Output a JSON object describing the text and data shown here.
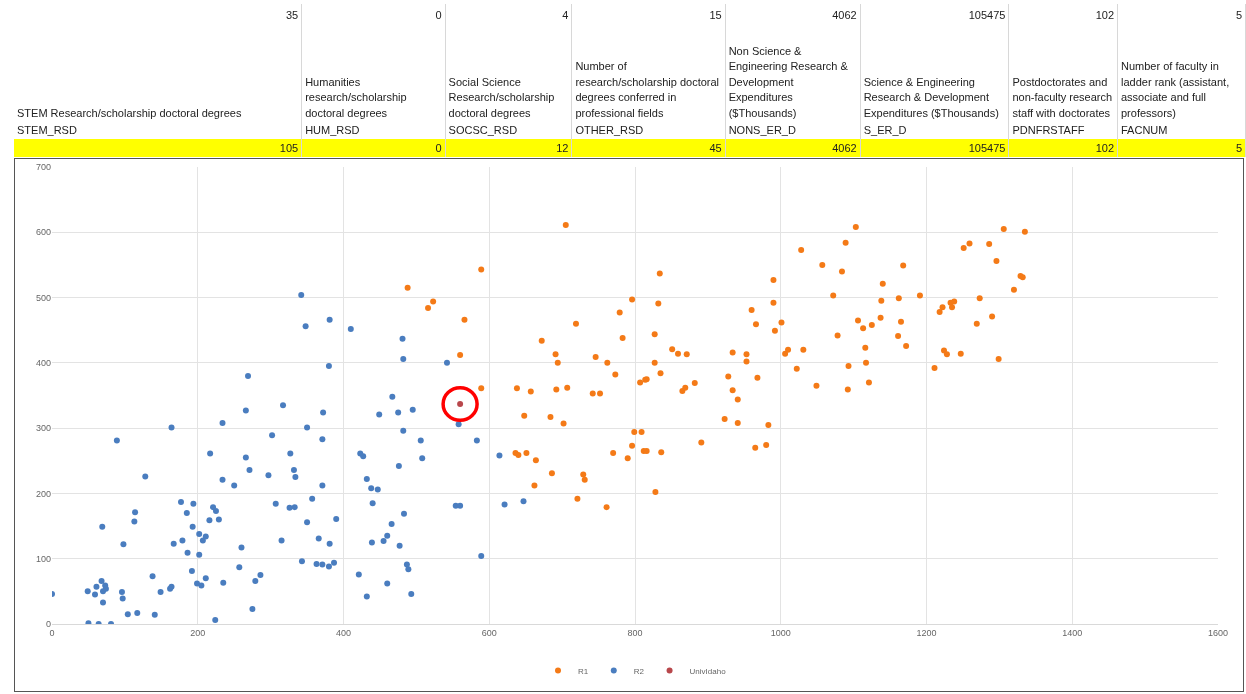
{
  "chart_data": {
    "type": "scatter",
    "annotations": [
      "35",
      "0",
      "4",
      "15",
      "4062",
      "105475",
      "102",
      "5",
      "STEM Research/scholarship doctoral degrees",
      "Humanities research/scholarship doctoral degrees",
      "Social Science Research/scholarship doctoral degrees",
      "Number of research/scholarship doctoral degrees conferred in professional fields",
      "Non Science & Engineering Research & Development Expenditures ($Thousands)",
      "Science & Engineering Research & Development Expenditures ($Thousands)",
      "Postdoctorates and non-faculty research staff with doctorates",
      "Number of faculty in ladder rank (assistant, associate and full professors)",
      "STEM_RSD",
      "HUM_RSD",
      "SOCSC_RSD",
      "OTHER_RSD",
      "NONS_ER_D",
      "S_ER_D",
      "PDNFRSTAFF",
      "FACNUM",
      "105",
      "0",
      "12",
      "45",
      "4062",
      "105475",
      "102",
      "5"
    ],
    "series": [
      {
        "name": "R1",
        "color": "#f47a17",
        "x": [
          488,
          516,
          523,
          566,
          560,
          589,
          589,
          705,
          834,
          796,
          832,
          779,
          719,
          672,
          783,
          827,
          691,
          694,
          746,
          762,
          773,
          827,
          835,
          851,
          859,
          871,
          807,
          814,
          816,
          638,
          657,
          692,
          707,
          742,
          752,
          865,
          869,
          882,
          648,
          684,
          702,
          799,
          809,
          796,
          812,
          816,
          836,
          770,
          790,
          636,
          640,
          651,
          664,
          686,
          729,
          731,
          662,
          721,
          761,
          828,
          891,
          934,
          953,
          953,
          928,
          934,
          941,
          968,
          923,
          941,
          983,
          965,
          980,
          990,
          990,
          960,
          966,
          1001,
          992,
          1006,
          1010,
          1022,
          1031,
          1049,
          1028,
          1057,
          1084,
          1072,
          1078,
          1089,
          1093,
          1092,
          1103,
          1168,
          1140,
          1138,
          1162,
          1191,
          1106,
          1113,
          1125,
          1137,
          1165,
          1161,
          1172,
          1116,
          1117,
          1121,
          1218,
          1222,
          1233,
          1238,
          1235,
          1273,
          1269,
          1290,
          1224,
          1228,
          1247,
          1211,
          1299,
          1251,
          1259,
          1286,
          1296,
          1306,
          1335,
          1320,
          1329,
          1332
        ],
        "values": [
          515,
          484,
          494,
          466,
          412,
          361,
          543,
          611,
          537,
          497,
          491,
          477,
          460,
          434,
          438,
          444,
          413,
          400,
          409,
          400,
          382,
          400,
          384,
          421,
          414,
          413,
          370,
          374,
          375,
          361,
          356,
          359,
          362,
          353,
          353,
          357,
          362,
          369,
          319,
          317,
          307,
          294,
          294,
          273,
          265,
          265,
          263,
          262,
          254,
          262,
          259,
          262,
          251,
          231,
          229,
          221,
          212,
          192,
          179,
          202,
          278,
          416,
          413,
          402,
          379,
          358,
          344,
          377,
          314,
          308,
          305,
          270,
          274,
          527,
          492,
          481,
          459,
          462,
          449,
          414,
          420,
          391,
          420,
          365,
          573,
          550,
          540,
          503,
          442,
          584,
          395,
          359,
          608,
          549,
          521,
          495,
          499,
          503,
          465,
          453,
          458,
          469,
          463,
          441,
          426,
          423,
          400,
          370,
          478,
          485,
          492,
          494,
          485,
          499,
          460,
          471,
          419,
          413,
          414,
          392,
          406,
          576,
          583,
          582,
          556,
          605,
          601,
          512,
          533,
          531
        ]
      },
      {
        "name": "R2",
        "color": "#4a7dbf",
        "x": [
          342,
          348,
          381,
          380,
          269,
          89,
          164,
          234,
          266,
          317,
          350,
          372,
          371,
          302,
          217,
          266,
          327,
          271,
          332,
          334,
          297,
          234,
          250,
          128,
          371,
          357,
          177,
          194,
          185,
          114,
          113,
          69,
          193,
          221,
          225,
          216,
          229,
          307,
          326,
          333,
          350,
          390,
          202,
          207,
          211,
          98,
          167,
          179,
          186,
          202,
          260,
          315,
          366,
          381,
          343,
          363,
          371,
          380,
          387,
          257,
          192,
          138,
          211,
          286,
          279,
          199,
          205,
          235,
          68,
          61,
          73,
          74,
          49,
          59,
          70,
          96,
          97,
          149,
          162,
          164,
          0,
          70,
          104,
          117,
          141,
          275,
          224,
          50,
          64,
          81,
          410,
          481,
          482,
          542,
          467,
          449,
          475,
          495,
          482,
          506,
          583,
          508,
          423,
          427,
          476,
          614,
          558,
          432,
          438,
          447,
          440,
          554,
          560,
          621,
          647,
          483,
          466,
          460,
          455,
          439,
          477,
          589,
          487,
          489,
          421,
          460,
          432,
          493
        ],
        "values": [
          504,
          456,
          466,
          395,
          380,
          281,
          301,
          308,
          327,
          335,
          301,
          324,
          283,
          289,
          261,
          255,
          261,
          236,
          236,
          225,
          228,
          221,
          212,
          226,
          212,
          192,
          187,
          184,
          170,
          171,
          157,
          149,
          149,
          179,
          173,
          159,
          160,
          184,
          178,
          179,
          156,
          161,
          138,
          128,
          134,
          122,
          123,
          128,
          109,
          106,
          117,
          128,
          131,
          123,
          96,
          92,
          91,
          88,
          94,
          87,
          81,
          73,
          70,
          75,
          66,
          62,
          59,
          63,
          66,
          57,
          59,
          54,
          50,
          45,
          50,
          49,
          39,
          49,
          54,
          57,
          46,
          33,
          15,
          17,
          14,
          23,
          6,
          1,
          0,
          0,
          452,
          437,
          406,
          400,
          348,
          321,
          324,
          328,
          296,
          281,
          281,
          254,
          261,
          257,
          242,
          258,
          306,
          222,
          208,
          206,
          185,
          181,
          181,
          183,
          188,
          169,
          153,
          135,
          127,
          125,
          120,
          104,
          91,
          84,
          76,
          62,
          42,
          46
        ]
      },
      {
        "name": "UnivIdaho",
        "color": "#b8474b",
        "x": [
          560
        ],
        "values": [
          337
        ]
      }
    ],
    "xlim": [
      0,
      1600
    ],
    "xticks": [
      0,
      200,
      400,
      600,
      800,
      1000,
      1200,
      1400,
      1600
    ],
    "ylim": [
      0,
      700
    ],
    "yticks": [
      0,
      100,
      200,
      300,
      400,
      500,
      600,
      700
    ],
    "grid": true,
    "legend": "bottom",
    "marker": "circle"
  }
}
